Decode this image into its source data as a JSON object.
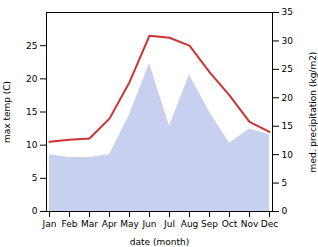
{
  "chart_data": {
    "type": "line",
    "categories": [
      "Jan",
      "Feb",
      "Mar",
      "Apr",
      "May",
      "Jun",
      "Jul",
      "Aug",
      "Sep",
      "Oct",
      "Nov",
      "Dec"
    ],
    "xlabel": "date (month)",
    "ylabel": "max temp (C)",
    "y2label": "med. precipitation (kg/m2)",
    "ylim": [
      0,
      30
    ],
    "yticks": [
      0,
      5,
      10,
      15,
      20,
      25
    ],
    "y2lim": [
      0,
      35
    ],
    "y2ticks": [
      0,
      5,
      10,
      15,
      20,
      25,
      30,
      35
    ],
    "series": [
      {
        "type": "area",
        "axis": "y2",
        "color": "#c8d0f0",
        "values": [
          10.0,
          9.5,
          9.5,
          10.0,
          17.0,
          26.0,
          15.0,
          24.0,
          17.5,
          12.0,
          14.5,
          13.5
        ]
      },
      {
        "type": "line",
        "color": "#cc3333",
        "values": [
          10.5,
          10.8,
          11.0,
          14.0,
          19.5,
          26.5,
          26.2,
          25.0,
          21.0,
          17.5,
          13.5,
          12.0
        ]
      }
    ]
  }
}
